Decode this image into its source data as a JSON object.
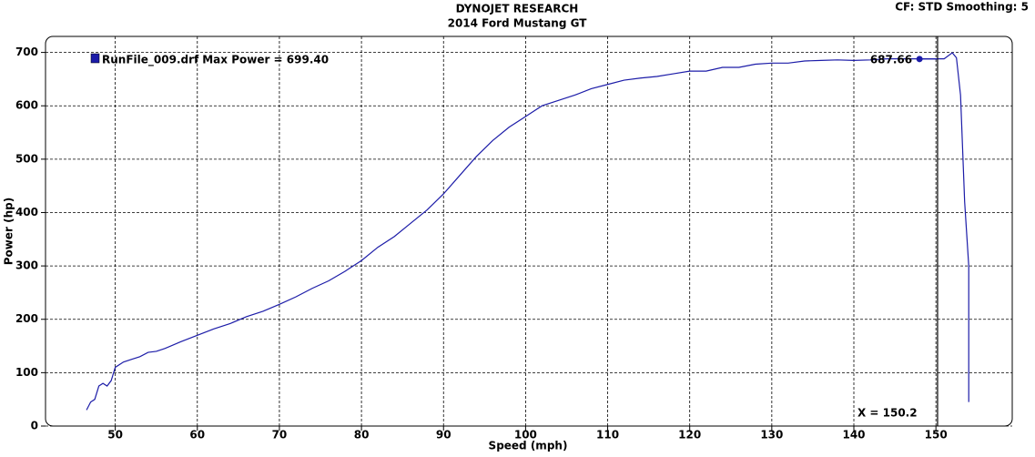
{
  "chart_data": {
    "type": "line",
    "title": "DYNOJET RESEARCH",
    "subtitle": "2014 Ford Mustang GT",
    "settings_label": "CF: STD  Smoothing: 5",
    "x_label": "Speed (mph)",
    "y_label": "Power (hp)",
    "xlim": [
      41.5,
      159.3
    ],
    "ylim": [
      0,
      730
    ],
    "xticks": [
      50,
      60,
      70,
      80,
      90,
      100,
      110,
      120,
      130,
      140,
      150
    ],
    "yticks": [
      0,
      100,
      200,
      300,
      400,
      500,
      600,
      700
    ],
    "grid": true,
    "series": [
      {
        "name": "RunFile_009.drf",
        "max_label": "Max Power = 699.40",
        "color": "#1c1ca8",
        "x": [
          46.5,
          47,
          47.5,
          48,
          48.5,
          49,
          49.5,
          50,
          51,
          52,
          53,
          54,
          55,
          56,
          58,
          60,
          62,
          64,
          66,
          68,
          70,
          72,
          74,
          76,
          78,
          80,
          82,
          84,
          86,
          88,
          90,
          92,
          94,
          96,
          98,
          100,
          102,
          104,
          106,
          108,
          110,
          112,
          114,
          116,
          118,
          120,
          122,
          124,
          126,
          128,
          130,
          132,
          134,
          136,
          138,
          140,
          142,
          144,
          146,
          148,
          150,
          151,
          152,
          152.5,
          153,
          153.5,
          154,
          154
        ],
        "values": [
          30,
          45,
          50,
          75,
          80,
          75,
          85,
          110,
          120,
          125,
          130,
          138,
          140,
          145,
          158,
          170,
          182,
          192,
          205,
          215,
          228,
          242,
          258,
          272,
          290,
          310,
          335,
          355,
          380,
          405,
          435,
          470,
          505,
          535,
          560,
          580,
          600,
          610,
          620,
          632,
          640,
          648,
          652,
          655,
          660,
          665,
          665,
          672,
          672,
          678,
          680,
          680,
          684,
          685,
          686,
          685,
          686,
          688,
          688,
          688,
          688,
          688,
          699.4,
          690,
          620,
          420,
          300,
          45
        ]
      }
    ],
    "marker": {
      "x": 148,
      "value": 687.66
    },
    "cursor": {
      "x": 150.2,
      "label": "X = 150.2"
    }
  }
}
